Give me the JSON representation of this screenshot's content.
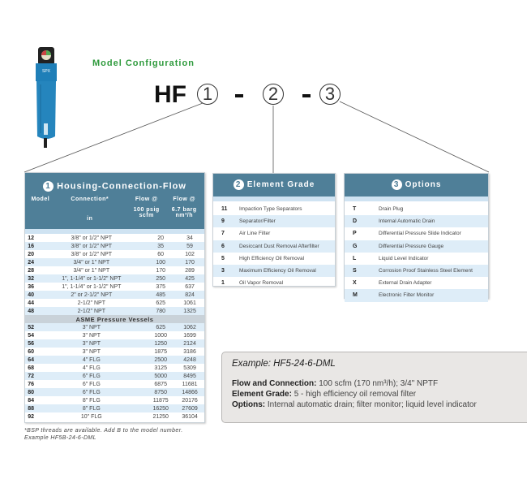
{
  "header": {
    "title": "Model Configuration",
    "prefix": "HF",
    "slots": [
      "1",
      "2",
      "3"
    ],
    "separator": "-"
  },
  "product_image": {
    "brand": "SPX",
    "icon": "compressed-air-filter-housing"
  },
  "colors": {
    "panel_header": "#4f7f98",
    "title_green": "#2e9a3c",
    "row_alt": "#deedf8"
  },
  "housing": {
    "number": "1",
    "title": "Housing-Connection-Flow",
    "columns": [
      {
        "l1": "Model",
        "l2": ""
      },
      {
        "l1": "Connection*",
        "l2": "in"
      },
      {
        "l1": "Flow @",
        "l2": "100 psig scfm"
      },
      {
        "l1": "Flow @",
        "l2": "6.7 barg nm³/h"
      }
    ],
    "rows": [
      [
        "12",
        "3/8\" or 1/2\" NPT",
        "20",
        "34"
      ],
      [
        "16",
        "3/8\" or 1/2\" NPT",
        "35",
        "59"
      ],
      [
        "20",
        "3/8\" or 1/2\" NPT",
        "60",
        "102"
      ],
      [
        "24",
        "3/4\" or 1\" NPT",
        "100",
        "170"
      ],
      [
        "28",
        "3/4\" or 1\" NPT",
        "170",
        "289"
      ],
      [
        "32",
        "1\", 1-1/4\" or 1-1/2\" NPT",
        "250",
        "425"
      ],
      [
        "36",
        "1\", 1-1/4\" or 1-1/2\" NPT",
        "375",
        "637"
      ],
      [
        "40",
        "2\" or 2-1/2\" NPT",
        "485",
        "824"
      ],
      [
        "44",
        "2-1/2\" NPT",
        "625",
        "1061"
      ],
      [
        "48",
        "2-1/2\" NPT",
        "780",
        "1325"
      ]
    ],
    "asme_label": "ASME Pressure Vessels",
    "asme_rows": [
      [
        "52",
        "3\" NPT",
        "625",
        "1062"
      ],
      [
        "54",
        "3\" NPT",
        "1000",
        "1699"
      ],
      [
        "56",
        "3\" NPT",
        "1250",
        "2124"
      ],
      [
        "60",
        "3\" NPT",
        "1875",
        "3186"
      ],
      [
        "64",
        "4\" FLG",
        "2500",
        "4248"
      ],
      [
        "68",
        "4\" FLG",
        "3125",
        "5309"
      ],
      [
        "72",
        "6\" FLG",
        "5000",
        "8495"
      ],
      [
        "76",
        "6\" FLG",
        "6875",
        "11681"
      ],
      [
        "80",
        "6\" FLG",
        "8750",
        "14866"
      ],
      [
        "84",
        "8\" FLG",
        "11875",
        "20176"
      ],
      [
        "88",
        "8\" FLG",
        "16250",
        "27609"
      ],
      [
        "92",
        "10\" FLG",
        "21250",
        "36104"
      ]
    ],
    "footnote": [
      "*BSP threads are available. Add B to the model number.",
      "Example HF5B-24-6-DML"
    ]
  },
  "grade": {
    "number": "2",
    "title": "Element Grade",
    "items": [
      [
        "11",
        "Impaction Type Separators"
      ],
      [
        "9",
        "Separator/Filter"
      ],
      [
        "7",
        "Air Line Filter"
      ],
      [
        "6",
        "Desiccant Dust Removal Afterfilter"
      ],
      [
        "5",
        "High Efficiency Oil Removal"
      ],
      [
        "3",
        "Maximum Efficiency Oil Removal"
      ],
      [
        "1",
        "Oil Vapor Removal"
      ]
    ]
  },
  "options": {
    "number": "3",
    "title": "Options",
    "items": [
      [
        "T",
        "Drain Plug"
      ],
      [
        "D",
        "Internal Automatic Drain"
      ],
      [
        "P",
        "Differential Pressure Slide Indicator"
      ],
      [
        "G",
        "Differential Pressure Gauge"
      ],
      [
        "L",
        "Liquid Level Indicator"
      ],
      [
        "S",
        "Corrosion Proof Stainless Steel Element"
      ],
      [
        "X",
        "External Drain Adapter"
      ],
      [
        "M",
        "Electronic Filter Monitor"
      ]
    ]
  },
  "example": {
    "heading": "Example: HF5-24-6-DML",
    "lines": [
      {
        "label": "Flow and Connection:",
        "text": " 100 scfm (170 nm³/h); 3/4\" NPTF"
      },
      {
        "label": "Element Grade:",
        "text": " 5 - high efficiency oil removal filter"
      },
      {
        "label": "Options:",
        "text": " Internal automatic drain; filter monitor; liquid level indicator"
      }
    ]
  }
}
